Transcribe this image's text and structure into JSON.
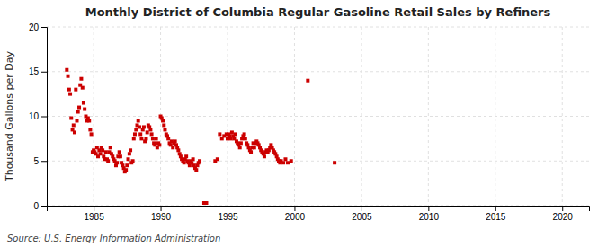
{
  "chart_data": {
    "type": "scatter",
    "title": "Monthly District of Columbia Regular Gasoline Retail Sales by Refiners",
    "ylabel": "Thousand Gallons per Day",
    "annotations": [
      "Source: U.S. Energy Information Administration"
    ],
    "color": "#cc0000",
    "marker": "square",
    "grid": true,
    "xlim": [
      1981.5,
      2022
    ],
    "ylim": [
      0,
      20
    ],
    "xticks": [
      1985,
      1990,
      1995,
      2000,
      2005,
      2010,
      2015,
      2020
    ],
    "yticks": [
      0,
      5,
      10,
      15,
      20
    ],
    "x": [
      1983.0,
      1983.08,
      1983.17,
      1983.25,
      1983.33,
      1983.42,
      1983.5,
      1983.58,
      1983.67,
      1983.75,
      1983.83,
      1983.92,
      1984.0,
      1984.08,
      1984.17,
      1984.25,
      1984.33,
      1984.42,
      1984.5,
      1984.58,
      1984.67,
      1984.75,
      1984.83,
      1984.92,
      1985.0,
      1985.08,
      1985.17,
      1985.25,
      1985.33,
      1985.42,
      1985.5,
      1985.58,
      1985.67,
      1985.75,
      1985.83,
      1985.92,
      1986.0,
      1986.08,
      1986.17,
      1986.25,
      1986.33,
      1986.42,
      1986.5,
      1986.58,
      1986.67,
      1986.75,
      1986.83,
      1986.92,
      1987.0,
      1987.08,
      1987.17,
      1987.25,
      1987.33,
      1987.42,
      1987.5,
      1987.58,
      1987.67,
      1987.75,
      1987.83,
      1987.92,
      1988.0,
      1988.08,
      1988.17,
      1988.25,
      1988.33,
      1988.42,
      1988.5,
      1988.58,
      1988.67,
      1988.75,
      1988.83,
      1988.92,
      1989.0,
      1989.08,
      1989.17,
      1989.25,
      1989.33,
      1989.42,
      1989.5,
      1989.58,
      1989.67,
      1989.75,
      1989.83,
      1989.92,
      1990.0,
      1990.08,
      1990.17,
      1990.25,
      1990.33,
      1990.42,
      1990.5,
      1990.58,
      1990.67,
      1990.75,
      1990.83,
      1990.92,
      1991.0,
      1991.08,
      1991.17,
      1991.25,
      1991.33,
      1991.42,
      1991.5,
      1991.58,
      1991.67,
      1991.75,
      1991.83,
      1991.92,
      1992.0,
      1992.08,
      1992.17,
      1992.25,
      1992.33,
      1992.42,
      1992.5,
      1992.58,
      1992.67,
      1992.75,
      1992.83,
      1992.92,
      1993.25,
      1993.42,
      1994.08,
      1994.25,
      1994.42,
      1994.58,
      1994.75,
      1994.92,
      1995.0,
      1995.08,
      1995.17,
      1995.25,
      1995.33,
      1995.42,
      1995.5,
      1995.58,
      1995.67,
      1995.75,
      1995.83,
      1995.92,
      1996.0,
      1996.08,
      1996.17,
      1996.25,
      1996.33,
      1996.42,
      1996.5,
      1996.58,
      1996.67,
      1996.75,
      1996.83,
      1996.92,
      1997.0,
      1997.08,
      1997.17,
      1997.25,
      1997.33,
      1997.42,
      1997.5,
      1997.58,
      1997.67,
      1997.75,
      1997.83,
      1997.92,
      1998.0,
      1998.08,
      1998.17,
      1998.25,
      1998.33,
      1998.42,
      1998.5,
      1998.58,
      1998.67,
      1998.75,
      1998.83,
      1998.92,
      1999.0,
      1999.17,
      1999.33,
      1999.5,
      1999.75,
      2001.0,
      2003.0
    ],
    "values": [
      15.2,
      14.5,
      13.0,
      12.5,
      9.8,
      8.5,
      9.0,
      8.2,
      13.0,
      9.5,
      10.5,
      11.0,
      13.5,
      14.2,
      13.2,
      11.5,
      10.8,
      10.0,
      9.5,
      9.8,
      9.5,
      8.5,
      8.0,
      6.0,
      6.2,
      6.0,
      5.8,
      6.5,
      5.5,
      6.2,
      5.8,
      6.5,
      6.2,
      5.5,
      5.2,
      6.0,
      5.2,
      5.0,
      6.0,
      6.5,
      5.8,
      5.5,
      5.2,
      5.0,
      4.5,
      4.8,
      5.5,
      6.0,
      5.5,
      4.8,
      4.5,
      4.2,
      3.8,
      4.0,
      4.5,
      5.2,
      5.8,
      6.2,
      4.8,
      5.0,
      7.5,
      8.0,
      8.5,
      9.0,
      9.5,
      8.8,
      8.0,
      7.5,
      8.5,
      8.8,
      7.2,
      7.5,
      8.2,
      9.0,
      8.8,
      8.5,
      8.0,
      7.5,
      7.0,
      6.8,
      7.5,
      6.5,
      7.0,
      6.8,
      10.0,
      9.8,
      9.5,
      9.0,
      8.5,
      8.0,
      7.8,
      7.5,
      7.0,
      6.8,
      7.2,
      6.5,
      7.0,
      7.2,
      6.8,
      6.5,
      6.2,
      5.8,
      5.5,
      5.2,
      5.0,
      4.8,
      5.2,
      5.5,
      5.0,
      4.8,
      4.5,
      5.0,
      4.8,
      5.2,
      4.5,
      4.2,
      4.0,
      4.5,
      4.8,
      5.0,
      0.3,
      0.3,
      5.0,
      5.2,
      8.0,
      7.5,
      7.8,
      8.0,
      7.5,
      8.0,
      7.8,
      7.5,
      8.2,
      7.8,
      7.5,
      8.0,
      7.2,
      7.0,
      6.8,
      6.5,
      7.0,
      7.5,
      7.8,
      8.0,
      7.5,
      7.0,
      6.8,
      6.5,
      6.2,
      6.0,
      6.5,
      7.0,
      6.5,
      7.0,
      7.2,
      7.0,
      6.8,
      6.5,
      6.2,
      6.0,
      5.8,
      5.5,
      6.0,
      6.2,
      6.0,
      6.2,
      6.5,
      6.8,
      6.5,
      6.2,
      6.0,
      5.8,
      5.5,
      5.2,
      5.0,
      4.8,
      5.0,
      4.8,
      5.2,
      4.8,
      5.0,
      14.0,
      4.8
    ]
  }
}
